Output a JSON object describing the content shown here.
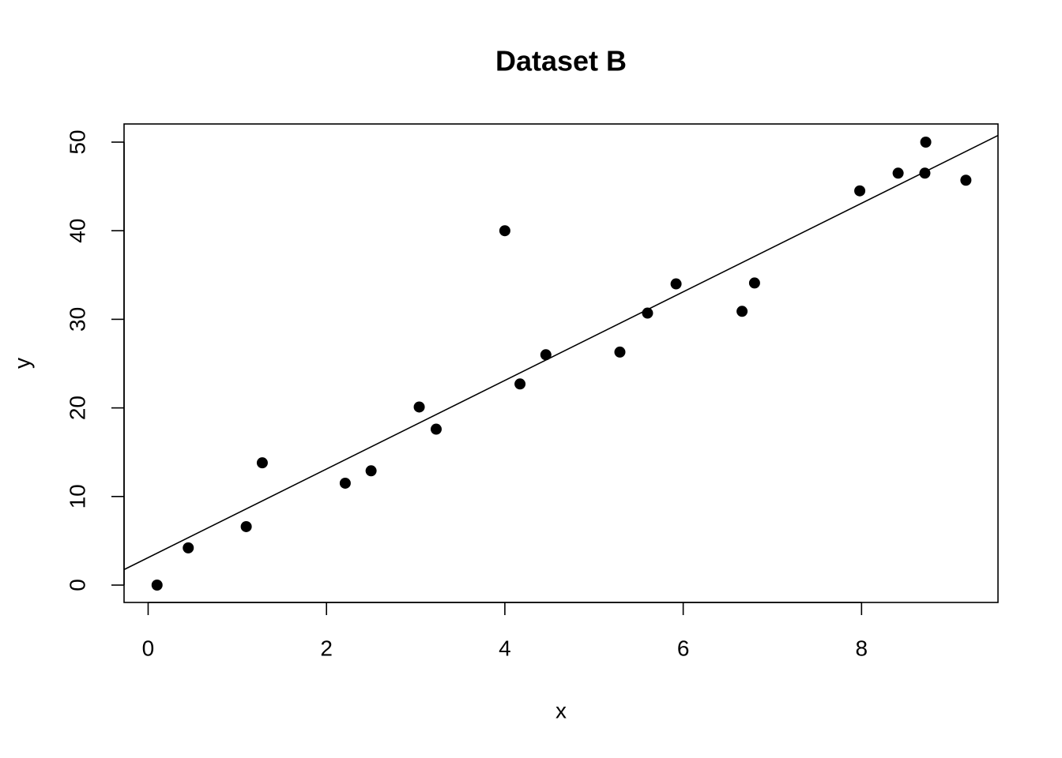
{
  "chart_data": {
    "type": "scatter",
    "title": "Dataset B",
    "x_label": "x",
    "y_label": "y",
    "x": [
      0.1,
      0.45,
      1.1,
      1.28,
      2.21,
      2.5,
      3.04,
      3.23,
      4.0,
      4.17,
      4.46,
      5.29,
      5.6,
      5.92,
      6.66,
      6.8,
      7.98,
      8.41,
      8.71,
      8.72,
      9.17
    ],
    "values": [
      0,
      4.2,
      6.6,
      13.8,
      11.5,
      12.9,
      20.1,
      17.6,
      40.0,
      22.7,
      26.0,
      26.3,
      30.7,
      34.0,
      30.9,
      34.1,
      44.5,
      46.5,
      46.5,
      50.0,
      45.7
    ],
    "color": "#000000",
    "regression": {
      "intercept": 3.1,
      "slope": 5.0
    },
    "xlim": [
      -0.27,
      9.53
    ],
    "ylim": [
      -1.96,
      52.05
    ],
    "xticks": [
      0,
      2,
      4,
      6,
      8
    ],
    "yticks": [
      0,
      10,
      20,
      30,
      40,
      50
    ]
  }
}
